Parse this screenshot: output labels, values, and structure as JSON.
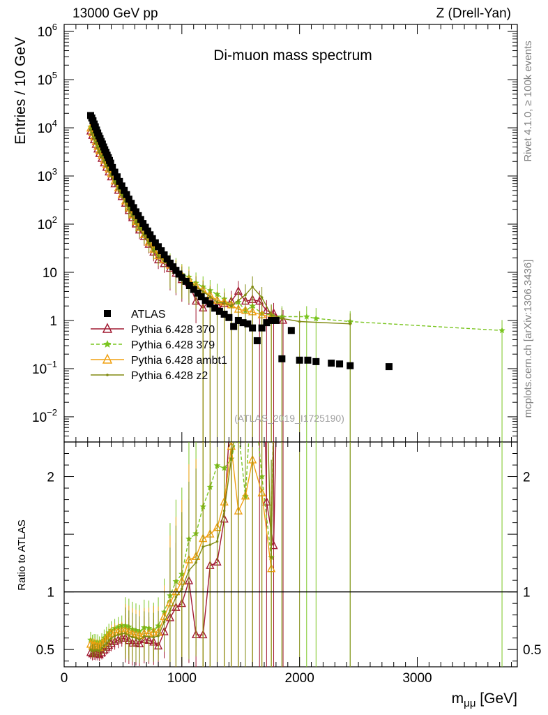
{
  "header": {
    "left": "13000 GeV pp",
    "right": "Z (Drell-Yan)"
  },
  "side_labels": {
    "rivet": "Rivet 4.1.0, ≥ 100k events",
    "mcplots": "mcplots.cern.ch [arXiv:1306.3436]"
  },
  "chart_data": {
    "type": "scatter",
    "title": "Di-muon mass spectrum",
    "watermark": "(ATLAS_2019_I1725190)",
    "xlabel": "m_μμ [GeV]",
    "xlabel_main": "m",
    "xlabel_sub": "μμ",
    "xlabel_unit": " [GeV]",
    "ylabel_main": "Entries / 10 GeV",
    "ylabel_ratio": "Ratio to ATLAS",
    "xlim": [
      0,
      3850
    ],
    "ylim_main": [
      0.003,
      1400000
    ],
    "ylim_ratio": [
      0.35,
      2.3
    ],
    "x_ticks": [
      0,
      1000,
      2000,
      3000
    ],
    "x_tick_labels": [
      "0",
      "1000",
      "2000",
      "3000"
    ],
    "y_ticks_main": [
      {
        "value": 0.01,
        "mant": "10",
        "exp": "−2"
      },
      {
        "value": 0.1,
        "mant": "10",
        "exp": "−1"
      },
      {
        "value": 1,
        "mant": "1",
        "exp": ""
      },
      {
        "value": 10,
        "mant": "10",
        "exp": ""
      },
      {
        "value": 100,
        "mant": "10",
        "exp": "2"
      },
      {
        "value": 1000,
        "mant": "10",
        "exp": "3"
      },
      {
        "value": 10000,
        "mant": "10",
        "exp": "4"
      },
      {
        "value": 100000,
        "mant": "10",
        "exp": "5"
      },
      {
        "value": 1000000,
        "mant": "10",
        "exp": "6"
      }
    ],
    "y_ticks_ratio": [
      0.5,
      1,
      2
    ],
    "y_tick_labels_ratio": [
      "0.5",
      "1",
      "2"
    ],
    "legend": [
      {
        "label": "ATLAS",
        "color": "#000000",
        "marker": "square",
        "line": "none"
      },
      {
        "label": "Pythia 6.428 370",
        "color": "#a01830",
        "marker": "triangle-open",
        "line": "solid"
      },
      {
        "label": "Pythia 6.428 379",
        "color": "#7ac520",
        "marker": "star",
        "line": "dashed"
      },
      {
        "label": "Pythia 6.428 ambt1",
        "color": "#f0a010",
        "marker": "triangle-open",
        "line": "solid"
      },
      {
        "label": "Pythia 6.428 z2",
        "color": "#808a10",
        "marker": "dot",
        "line": "solid"
      }
    ],
    "data_series": {
      "name": "ATLAS",
      "x": [
        225,
        235,
        245,
        255,
        265,
        275,
        285,
        295,
        305,
        315,
        325,
        335,
        345,
        355,
        365,
        375,
        385,
        395,
        410,
        430,
        450,
        470,
        490,
        510,
        530,
        550,
        570,
        590,
        610,
        630,
        650,
        670,
        690,
        710,
        730,
        750,
        775,
        800,
        825,
        850,
        875,
        900,
        925,
        950,
        975,
        1000,
        1035,
        1065,
        1100,
        1135,
        1165,
        1200,
        1240,
        1280,
        1320,
        1360,
        1400,
        1440,
        1480,
        1520,
        1560,
        1600,
        1640,
        1680,
        1720,
        1760,
        1800,
        1850,
        1930,
        2000,
        2070,
        2140,
        2270,
        2340,
        2430,
        2760
      ],
      "y": [
        18000,
        16000,
        14000,
        12000,
        10500,
        9000,
        7800,
        6800,
        6000,
        5200,
        4600,
        4000,
        3500,
        3100,
        2700,
        2400,
        2100,
        1850,
        1500,
        1200,
        960,
        770,
        620,
        500,
        410,
        330,
        270,
        220,
        180,
        150,
        125,
        103,
        86,
        72,
        60,
        50,
        41,
        34,
        28,
        23,
        19,
        15.5,
        13,
        11,
        9.2,
        7.8,
        6.5,
        5.3,
        4.4,
        3.7,
        3.1,
        2.6,
        2.2,
        1.8,
        1.55,
        1.35,
        1.15,
        0.75,
        1.0,
        0.9,
        0.85,
        0.7,
        0.38,
        0.7,
        0.9,
        1.0,
        1.0,
        0.16,
        0.62,
        0.15,
        0.15,
        0.14,
        0.13,
        0.125,
        0.115,
        0.11
      ]
    },
    "series": [
      {
        "name": "Pythia 6.428 370",
        "x": [
          225,
          240,
          255,
          270,
          285,
          300,
          320,
          340,
          360,
          380,
          400,
          430,
          460,
          490,
          520,
          550,
          580,
          610,
          640,
          680,
          720,
          760,
          800,
          850,
          900,
          950,
          1000,
          1060,
          1120,
          1180,
          1240,
          1300,
          1360,
          1420,
          1480,
          1540,
          1600,
          1660,
          1720,
          1780,
          1860
        ],
        "y": [
          8500,
          6900,
          5600,
          4500,
          3600,
          2900,
          2300,
          1850,
          1500,
          1200,
          950,
          680,
          500,
          370,
          270,
          190,
          135,
          100,
          75,
          55,
          38,
          26,
          18,
          15,
          12,
          9.5,
          7,
          6,
          2.5,
          1.8,
          2.7,
          2.1,
          2.2,
          2.5,
          4.0,
          2.5,
          2.7,
          2.5,
          1.6,
          1.4,
          1.0
        ]
      },
      {
        "name": "Pythia 6.428 379",
        "x": [
          225,
          240,
          255,
          270,
          285,
          300,
          320,
          340,
          360,
          380,
          400,
          430,
          460,
          490,
          520,
          550,
          580,
          610,
          640,
          680,
          720,
          760,
          800,
          850,
          900,
          950,
          1000,
          1060,
          1120,
          1180,
          1240,
          1300,
          1360,
          1420,
          1480,
          1540,
          1600,
          1680,
          1760,
          1850,
          2060,
          2140,
          2430,
          3720
        ],
        "y": [
          10500,
          8400,
          6800,
          5500,
          4400,
          3500,
          2800,
          2250,
          1800,
          1450,
          1150,
          820,
          600,
          440,
          320,
          230,
          165,
          120,
          90,
          65,
          45,
          31,
          24,
          19,
          15,
          12,
          9,
          8,
          6,
          5,
          4.2,
          3.5,
          2.8,
          2.0,
          2.4,
          1.6,
          2.0,
          1.4,
          1.3,
          1.2,
          1.2,
          1.1,
          0.95,
          0.62
        ]
      },
      {
        "name": "Pythia 6.428 ambt1",
        "x": [
          225,
          240,
          255,
          270,
          285,
          300,
          320,
          340,
          360,
          380,
          400,
          430,
          460,
          490,
          520,
          550,
          580,
          610,
          640,
          680,
          720,
          760,
          800,
          850,
          900,
          950,
          1000,
          1060,
          1120,
          1180,
          1240,
          1300,
          1360,
          1420,
          1480,
          1540,
          1600,
          1680,
          1760
        ],
        "y": [
          9800,
          7900,
          6400,
          5100,
          4100,
          3300,
          2650,
          2100,
          1700,
          1380,
          1100,
          780,
          560,
          410,
          300,
          215,
          155,
          113,
          85,
          60,
          42,
          30,
          22,
          18,
          14,
          11,
          8.5,
          7,
          5.2,
          4.2,
          3.3,
          2.6,
          2.4,
          2.1,
          1.7,
          1.6,
          1.5,
          1.3,
          1.2
        ]
      },
      {
        "name": "Pythia 6.428 z2",
        "x": [
          225,
          240,
          255,
          270,
          285,
          300,
          320,
          340,
          360,
          380,
          400,
          430,
          460,
          490,
          520,
          550,
          580,
          610,
          640,
          680,
          720,
          760,
          800,
          850,
          900,
          950,
          1000,
          1060,
          1120,
          1180,
          1240,
          1300,
          1360,
          1420,
          1480,
          1540,
          1600,
          1680,
          1760,
          1850,
          2000,
          2430
        ],
        "y": [
          9000,
          7300,
          5900,
          4800,
          3850,
          3100,
          2500,
          2000,
          1600,
          1300,
          1030,
          740,
          540,
          395,
          290,
          205,
          148,
          108,
          80,
          58,
          40,
          28,
          21,
          17,
          13,
          10.5,
          8,
          6.5,
          5,
          4,
          3.1,
          2.4,
          2.3,
          2.0,
          2.6,
          3.4,
          5.0,
          3.0,
          1.3,
          1.1,
          0.95,
          0.85
        ]
      }
    ]
  }
}
